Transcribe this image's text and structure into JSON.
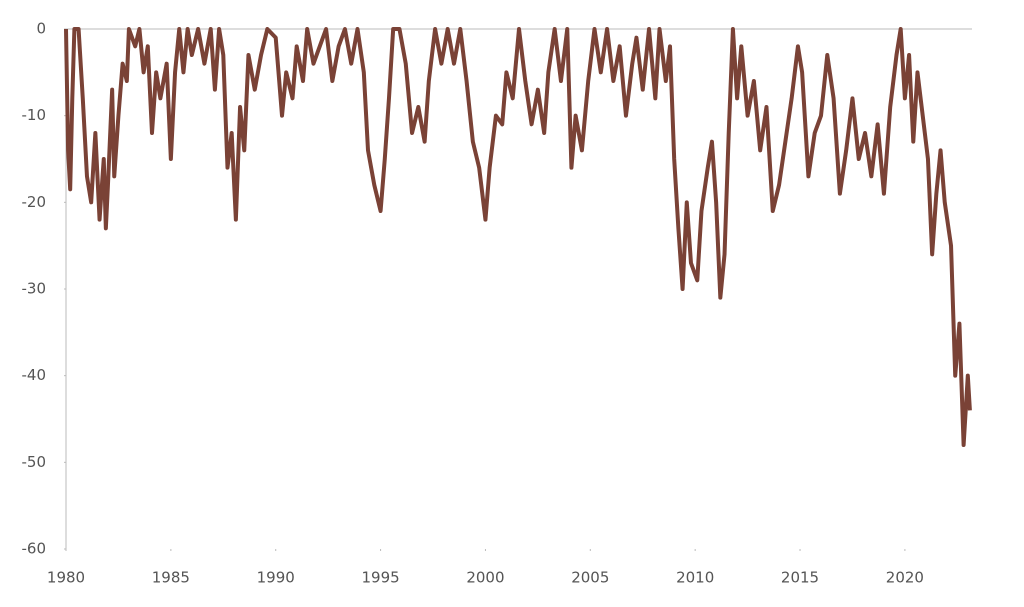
{
  "chart_data": {
    "type": "line",
    "x": [
      1980.0,
      1980.1,
      1980.2,
      1980.3,
      1980.4,
      1980.6,
      1980.8,
      1981.0,
      1981.2,
      1981.4,
      1981.6,
      1981.8,
      1981.9,
      1982.0,
      1982.2,
      1982.3,
      1982.5,
      1982.7,
      1982.9,
      1983.0,
      1983.3,
      1983.5,
      1983.7,
      1983.9,
      1984.1,
      1984.3,
      1984.5,
      1984.8,
      1985.0,
      1985.2,
      1985.4,
      1985.6,
      1985.8,
      1986.0,
      1986.3,
      1986.6,
      1986.9,
      1987.1,
      1987.3,
      1987.5,
      1987.7,
      1987.9,
      1988.1,
      1988.3,
      1988.5,
      1988.7,
      1989.0,
      1989.3,
      1989.6,
      1990.0,
      1990.3,
      1990.5,
      1990.8,
      1991.0,
      1991.3,
      1991.5,
      1991.8,
      1992.1,
      1992.4,
      1992.7,
      1993.0,
      1993.3,
      1993.6,
      1993.9,
      1994.2,
      1994.4,
      1994.7,
      1995.0,
      1995.2,
      1995.4,
      1995.6,
      1995.9,
      1996.2,
      1996.5,
      1996.8,
      1997.1,
      1997.3,
      1997.6,
      1997.9,
      1998.2,
      1998.5,
      1998.8,
      1999.1,
      1999.4,
      1999.7,
      2000.0,
      2000.2,
      2000.5,
      2000.8,
      2001.0,
      2001.3,
      2001.6,
      2001.9,
      2002.2,
      2002.5,
      2002.8,
      2003.0,
      2003.3,
      2003.6,
      2003.9,
      2004.1,
      2004.3,
      2004.6,
      2004.9,
      2005.2,
      2005.5,
      2005.8,
      2006.1,
      2006.4,
      2006.7,
      2007.0,
      2007.2,
      2007.5,
      2007.8,
      2008.1,
      2008.3,
      2008.6,
      2008.8,
      2009.0,
      2009.2,
      2009.4,
      2009.6,
      2009.8,
      2010.1,
      2010.3,
      2010.6,
      2010.8,
      2011.0,
      2011.2,
      2011.4,
      2011.6,
      2011.8,
      2012.0,
      2012.2,
      2012.5,
      2012.8,
      2013.1,
      2013.4,
      2013.7,
      2014.0,
      2014.3,
      2014.6,
      2014.9,
      2015.1,
      2015.4,
      2015.7,
      2016.0,
      2016.3,
      2016.6,
      2016.9,
      2017.2,
      2017.5,
      2017.8,
      2018.1,
      2018.4,
      2018.7,
      2019.0,
      2019.3,
      2019.6,
      2019.8,
      2020.0,
      2020.2,
      2020.4,
      2020.6,
      2020.8,
      2021.1,
      2021.3,
      2021.5,
      2021.7,
      2021.9,
      2022.2,
      2022.4,
      2022.6,
      2022.8,
      2023.0,
      2023.1
    ],
    "series": [
      {
        "color": "#7a4236",
        "values": [
          0,
          -14,
          -18.5,
          -8,
          0,
          0,
          -8,
          -17,
          -20,
          -12,
          -22,
          -15,
          -23,
          -18,
          -7,
          -17,
          -10,
          -4,
          -6,
          0,
          -2,
          0,
          -5,
          -2,
          -12,
          -5,
          -8,
          -4,
          -15,
          -5,
          0,
          -5,
          0,
          -3,
          0,
          -4,
          0,
          -7,
          0,
          -3,
          -16,
          -12,
          -22,
          -9,
          -14,
          -3,
          -7,
          -3,
          0,
          -1,
          -10,
          -5,
          -8,
          -2,
          -6,
          0,
          -4,
          -2,
          0,
          -6,
          -2,
          0,
          -4,
          0,
          -5,
          -14,
          -18,
          -21,
          -15,
          -8,
          0,
          0,
          -4,
          -12,
          -9,
          -13,
          -6,
          0,
          -4,
          0,
          -4,
          0,
          -6,
          -13,
          -16,
          -22,
          -16,
          -10,
          -11,
          -5,
          -8,
          0,
          -6,
          -11,
          -7,
          -12,
          -5,
          0,
          -6,
          0,
          -16,
          -10,
          -14,
          -6,
          0,
          -5,
          0,
          -6,
          -2,
          -10,
          -4,
          -1,
          -7,
          0,
          -8,
          0,
          -6,
          -2,
          -15,
          -23,
          -30,
          -20,
          -27,
          -29,
          -21,
          -16,
          -13,
          -20,
          -31,
          -26,
          -12,
          0,
          -8,
          -2,
          -10,
          -6,
          -14,
          -9,
          -21,
          -18,
          -13,
          -8,
          -2,
          -5,
          -17,
          -12,
          -10,
          -3,
          -8,
          -19,
          -14,
          -8,
          -15,
          -12,
          -17,
          -11,
          -19,
          -9,
          -3,
          0,
          -8,
          -3,
          -13,
          -5,
          -9,
          -15,
          -26,
          -19,
          -14,
          -20,
          -25,
          -40,
          -34,
          -48,
          -40,
          -44
        ]
      }
    ],
    "xlim": [
      1980,
      2023.2
    ],
    "xticks": [
      1980,
      1985,
      1990,
      1995,
      2000,
      2005,
      2010,
      2015,
      2020
    ],
    "ylim": [
      -60,
      0
    ],
    "yticks": [
      0,
      -10,
      -20,
      -30,
      -40,
      -50,
      -60
    ]
  }
}
